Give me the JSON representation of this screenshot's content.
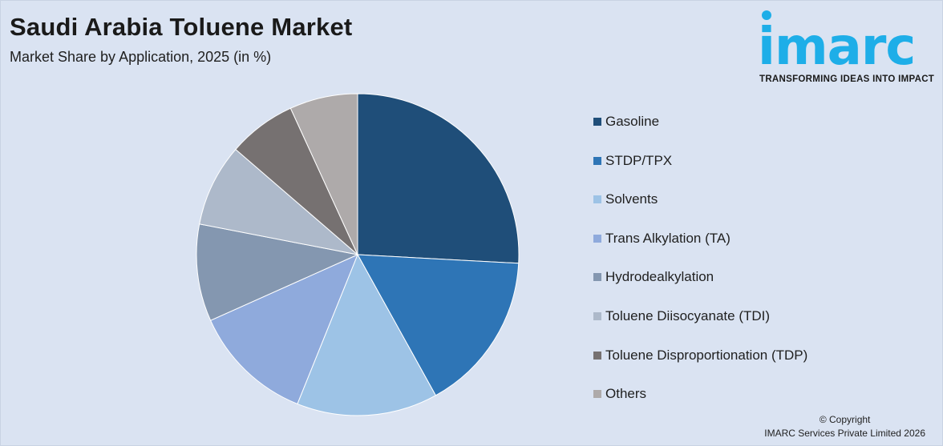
{
  "header": {
    "title": "Saudi Arabia Toluene Market",
    "subtitle": "Market Share by Application, 2025 (in %)"
  },
  "logo": {
    "wordmark": "imarc",
    "tagline": "TRANSFORMING IDEAS INTO IMPACT",
    "color": "#1eaee8"
  },
  "chart_data": {
    "type": "pie",
    "title": "Saudi Arabia Toluene Market",
    "subtitle": "Market Share by Application, 2025 (in %)",
    "legend_position": "right",
    "start_angle": "12 o'clock",
    "direction": "clockwise",
    "slices": [
      {
        "label": "Gasoline",
        "value": 26.5,
        "color": "#1f4e79"
      },
      {
        "label": "STDP/TPX",
        "value": 16.5,
        "color": "#2e75b6"
      },
      {
        "label": "Solvents",
        "value": 14.5,
        "color": "#9dc3e6"
      },
      {
        "label": "Trans Alkylation (TA)",
        "value": 12.5,
        "color": "#8faadc"
      },
      {
        "label": "Hydrodealkylation",
        "value": 10.0,
        "color": "#8497b0"
      },
      {
        "label": "Toluene Diisocyanate (TDI)",
        "value": 8.5,
        "color": "#adb9ca"
      },
      {
        "label": "Toluene Disproportionation (TDP)",
        "value": 7.0,
        "color": "#767171"
      },
      {
        "label": "Others",
        "value": 7.0,
        "color": "#aeaaaa"
      }
    ]
  },
  "footer": {
    "copyright_line1": "© Copyright",
    "copyright_line2": "IMARC Services Private Limited 2026"
  }
}
